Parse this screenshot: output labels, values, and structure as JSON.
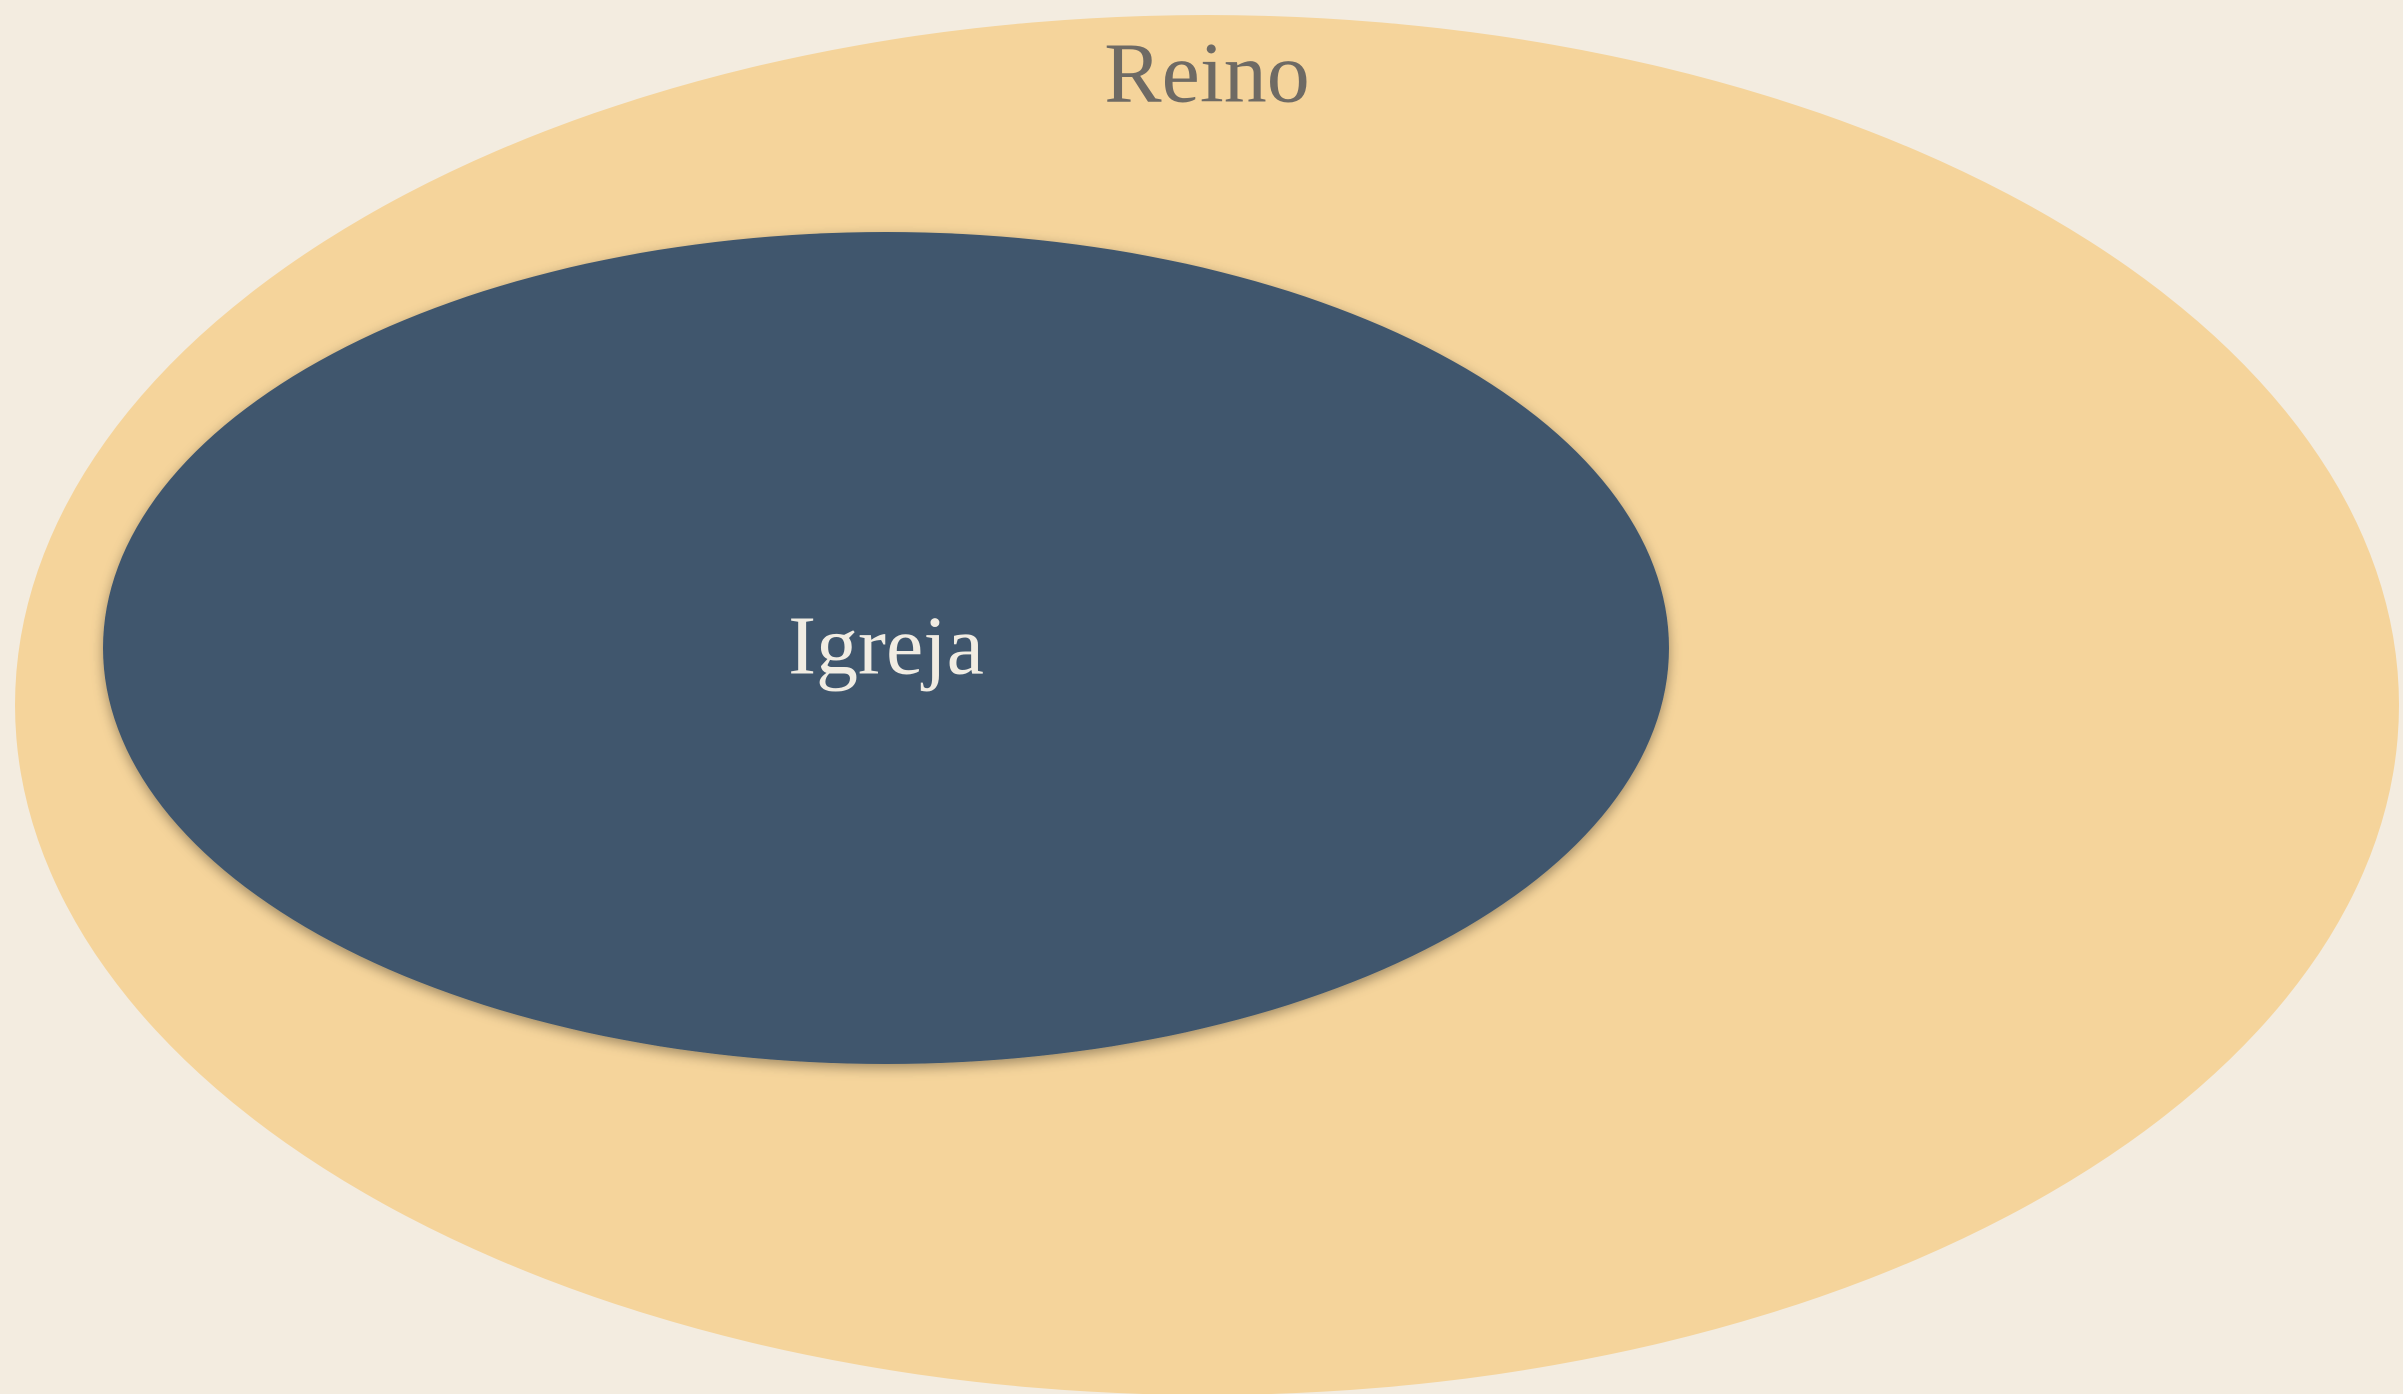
{
  "outer": {
    "label": "Reino"
  },
  "inner": {
    "label": "Igreja"
  }
}
